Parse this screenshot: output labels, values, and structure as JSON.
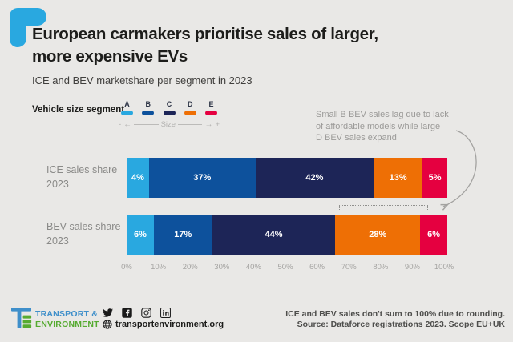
{
  "header": {
    "title_line1": "European carmakers prioritise sales of larger,",
    "title_line2": "more expensive EVs",
    "subtitle": "ICE and BEV marketshare per segment in 2023"
  },
  "legend": {
    "label": "Vehicle size segment",
    "segments": [
      {
        "label": "A",
        "color": "#29a8e0"
      },
      {
        "label": "B",
        "color": "#0d519c"
      },
      {
        "label": "C",
        "color": "#1d2557"
      },
      {
        "label": "D",
        "color": "#ee6f05"
      },
      {
        "label": "E",
        "color": "#e50040"
      }
    ],
    "size_axis": {
      "minus": "-",
      "arrow_left": "←",
      "label": "Size",
      "arrow_right": "→",
      "plus": "+"
    }
  },
  "annotation": {
    "lines": [
      "Small B BEV sales lag due to lack",
      "of affordable models while large",
      "D BEV sales expand"
    ]
  },
  "chart_data": {
    "type": "bar",
    "orientation": "horizontal",
    "stacked": true,
    "title": "European carmakers prioritise sales of larger, more expensive EVs",
    "subtitle": "ICE and BEV marketshare per segment in 2023",
    "categories": [
      "A",
      "B",
      "C",
      "D",
      "E"
    ],
    "series": [
      {
        "name": "ICE sales share 2023",
        "values": [
          4,
          37,
          42,
          13,
          5
        ]
      },
      {
        "name": "BEV sales share 2023",
        "values": [
          6,
          17,
          44,
          28,
          6
        ]
      }
    ],
    "value_suffix": "%",
    "x_ticks": [
      "0%",
      "10%",
      "20%",
      "30%",
      "40%",
      "50%",
      "60%",
      "70%",
      "80%",
      "90%",
      "100%"
    ],
    "xlim": [
      0,
      100
    ],
    "legend_position": "top",
    "grid": false
  },
  "rows": [
    {
      "label_line1": "ICE sales share",
      "label_line2": "2023"
    },
    {
      "label_line1": "BEV sales share",
      "label_line2": "2023"
    }
  ],
  "footer": {
    "logo_line1": "TRANSPORT &",
    "logo_line2": "ENVIRONMENT",
    "social_icons": [
      "twitter-icon",
      "facebook-icon",
      "instagram-icon",
      "linkedin-icon"
    ],
    "website": "transportenvironment.org",
    "note_line1": "ICE and BEV sales don't sum to 100% due to rounding.",
    "note_line2": "Source: Dataforce registrations 2023. Scope EU+UK"
  },
  "colors": {
    "background": "#e9e8e6",
    "title_text": "#1d1d1b",
    "muted_text": "#8a8a88",
    "annotation_text": "#9b9a98",
    "accent_blue": "#29a8e0",
    "brand_blue": "#3f8fca",
    "brand_green": "#56ab31"
  }
}
